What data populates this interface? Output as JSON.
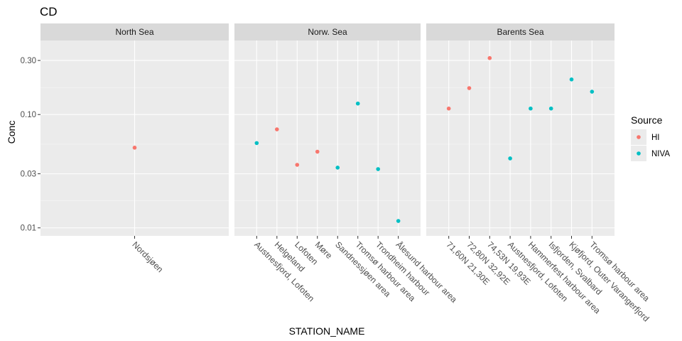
{
  "chart_data": {
    "type": "scatter",
    "title": "CD",
    "xlabel": "STATION_NAME",
    "ylabel": "Conc",
    "y_scale": "log10",
    "ylim": [
      0.0085,
      0.45
    ],
    "y_ticks": [
      0.01,
      0.03,
      0.1,
      0.3
    ],
    "y_tick_labels": [
      "0.01",
      "0.03",
      "0.10",
      "0.30"
    ],
    "grid": true,
    "legend": {
      "title": "Source",
      "placement": "right",
      "entries": [
        {
          "name": "HI",
          "color": "#F8766D"
        },
        {
          "name": "NIVA",
          "color": "#00BFC4"
        }
      ]
    },
    "facets": [
      {
        "label": "North Sea",
        "categories": [
          "Nordsjøen"
        ],
        "points": [
          {
            "x": "Nordsjøen",
            "y": 0.051,
            "source": "HI"
          }
        ]
      },
      {
        "label": "Norw. Sea",
        "categories": [
          "Austnesfjord, Lofoten",
          "Helgeland",
          "Lofoten",
          "Møre",
          "Sandnessjøen area",
          "Tromsø harbour area",
          "Trondheim harbour",
          "Ålesund harbour area"
        ],
        "points": [
          {
            "x": "Austnesfjord, Lofoten",
            "y": 0.056,
            "source": "NIVA"
          },
          {
            "x": "Helgeland",
            "y": 0.074,
            "source": "HI"
          },
          {
            "x": "Lofoten",
            "y": 0.036,
            "source": "HI"
          },
          {
            "x": "Møre",
            "y": 0.047,
            "source": "HI"
          },
          {
            "x": "Sandnessjøen area",
            "y": 0.034,
            "source": "NIVA"
          },
          {
            "x": "Tromsø harbour area",
            "y": 0.125,
            "source": "NIVA"
          },
          {
            "x": "Trondheim harbour",
            "y": 0.033,
            "source": "NIVA"
          },
          {
            "x": "Ålesund harbour area",
            "y": 0.0115,
            "source": "NIVA"
          }
        ]
      },
      {
        "label": "Barents Sea",
        "categories": [
          "71,60N 21,30E",
          "72,80N 32,92E",
          "74,53N 19,93E",
          "Austnesfjord, Lofoten",
          "Hammerfest harbour area",
          "Isfjorden, Svalbard",
          "Kjøfjord, Outer Varangerfjord",
          "Tromsø harbour area"
        ],
        "points": [
          {
            "x": "71,60N 21,30E",
            "y": 0.113,
            "source": "HI"
          },
          {
            "x": "72,80N 32,92E",
            "y": 0.171,
            "source": "HI"
          },
          {
            "x": "74,53N 19,93E",
            "y": 0.315,
            "source": "HI"
          },
          {
            "x": "Austnesfjord, Lofoten",
            "y": 0.041,
            "source": "NIVA"
          },
          {
            "x": "Hammerfest harbour area",
            "y": 0.113,
            "source": "NIVA"
          },
          {
            "x": "Isfjorden, Svalbard",
            "y": 0.113,
            "source": "NIVA"
          },
          {
            "x": "Kjøfjord, Outer Varangerfjord",
            "y": 0.204,
            "source": "NIVA"
          },
          {
            "x": "Tromsø harbour area",
            "y": 0.159,
            "source": "NIVA"
          }
        ]
      }
    ]
  }
}
